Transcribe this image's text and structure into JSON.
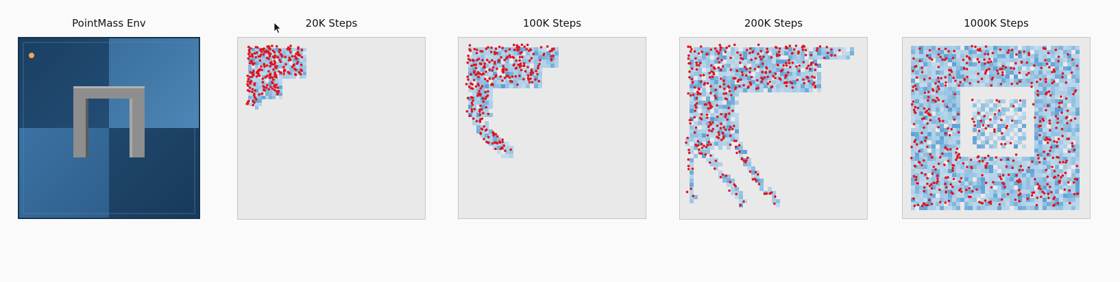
{
  "colors": {
    "env_dark": "#1b4266",
    "env_light": "#3f77a8",
    "wall": "#8f8f8f",
    "agent": "#f5a35b",
    "plot_bg": "#e9e9e9",
    "visited_cell": "#7fb6de",
    "sample_point": "#e0141c"
  },
  "panels": [
    {
      "title": "PointMass Env"
    },
    {
      "title": "20K Steps"
    },
    {
      "title": "100K Steps"
    },
    {
      "title": "200K Steps"
    },
    {
      "title": "1000K Steps"
    }
  ],
  "icons": {
    "cursor": "mouse-pointer-icon",
    "agent": "agent-dot-icon"
  }
}
